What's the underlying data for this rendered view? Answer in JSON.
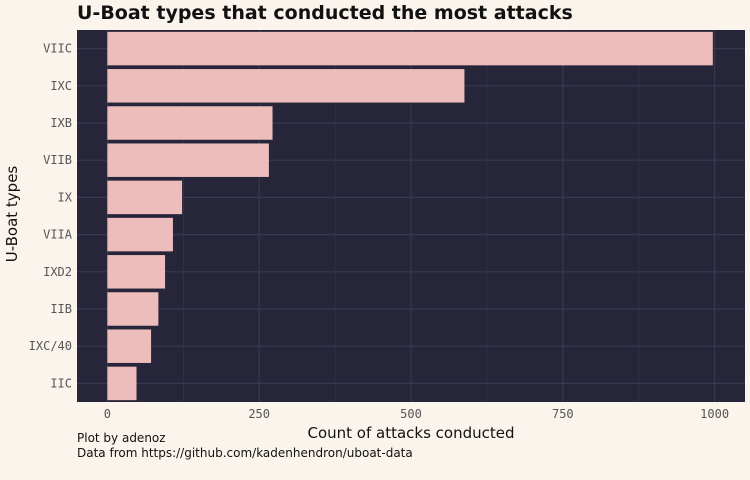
{
  "chart_data": {
    "type": "bar",
    "orientation": "horizontal",
    "title": "U-Boat types that conducted the most attacks",
    "xlabel": "Count of attacks conducted",
    "ylabel": "U-Boat types",
    "categories": [
      "VIIC",
      "IXC",
      "IXB",
      "VIIB",
      "IX",
      "VIIA",
      "IXD2",
      "IIB",
      "IXC/40",
      "IIC"
    ],
    "values": [
      997,
      588,
      272,
      266,
      123,
      108,
      95,
      84,
      72,
      48
    ],
    "xlim": [
      -50,
      1050
    ],
    "xticks": [
      0,
      250,
      500,
      750,
      1000
    ],
    "grid": true,
    "colors": {
      "bar": "#ecbdbb",
      "panel": "#27253a",
      "grid": "#3a3850",
      "background": "#faf4ec"
    },
    "caption": [
      "Plot by adenoz",
      "Data from https://github.com/kadenhendron/uboat-data"
    ]
  }
}
